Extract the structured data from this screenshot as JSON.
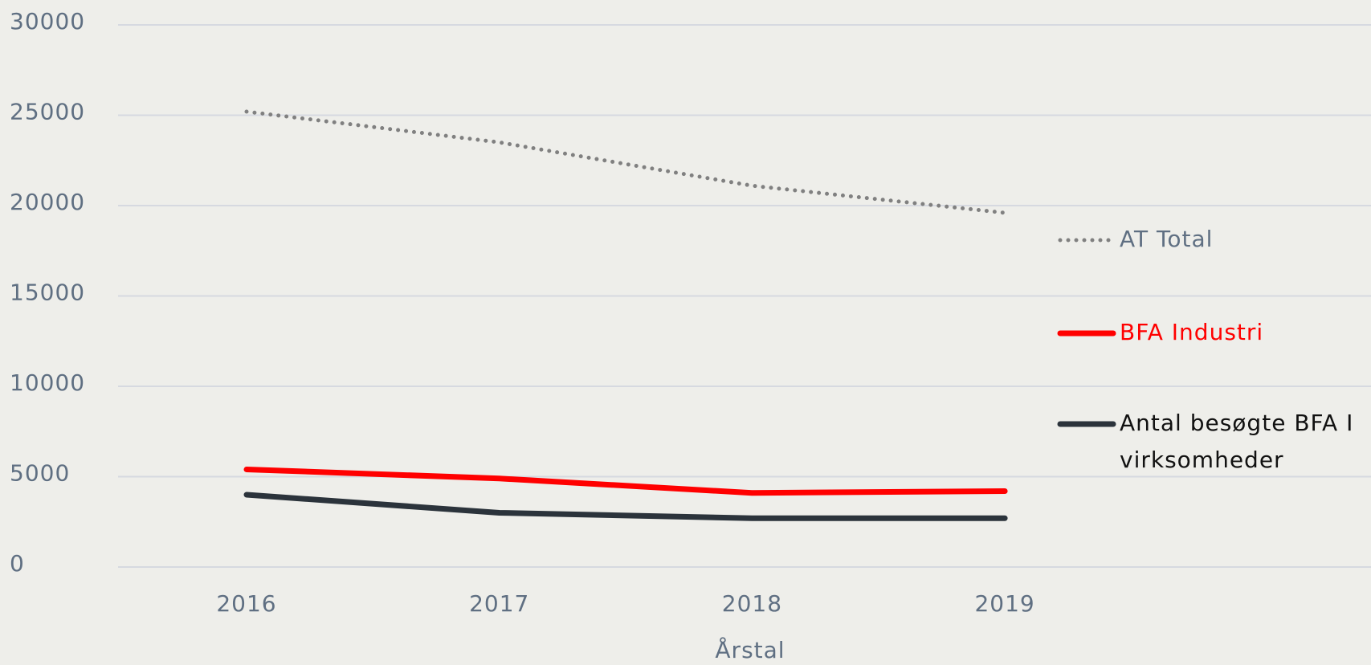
{
  "chart_data": {
    "type": "line",
    "categories": [
      "2016",
      "2017",
      "2018",
      "2019"
    ],
    "x_label": "Årstal",
    "series": [
      {
        "name": "AT Total",
        "color": "#808080",
        "dash": "dotted",
        "values": [
          25200,
          23500,
          21100,
          19600
        ]
      },
      {
        "name": "BFA Industri",
        "color": "#ff0000",
        "values": [
          5400,
          4900,
          4100,
          4200
        ]
      },
      {
        "name": "Antal besøgte BFA I virksomheder",
        "color": "#2b333b",
        "values": [
          4000,
          3000,
          2700,
          2700
        ]
      }
    ],
    "ylim": [
      0,
      30000
    ],
    "yticks": [
      0,
      5000,
      10000,
      15000,
      20000,
      25000,
      30000
    ],
    "grid": true,
    "legend": "right"
  }
}
